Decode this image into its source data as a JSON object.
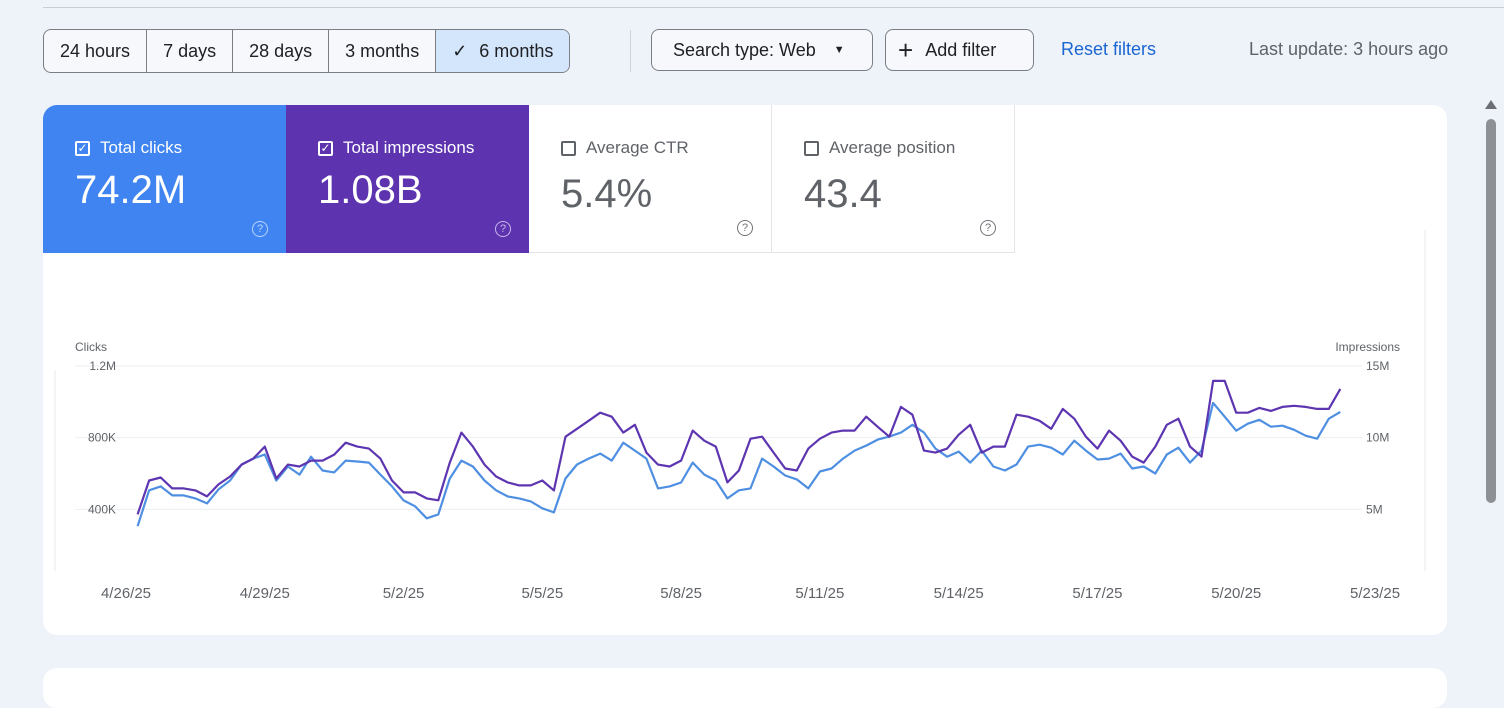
{
  "toolbar": {
    "ranges": [
      {
        "label": "24 hours",
        "selected": false
      },
      {
        "label": "7 days",
        "selected": false
      },
      {
        "label": "28 days",
        "selected": false
      },
      {
        "label": "3 months",
        "selected": false
      },
      {
        "label": "6 months",
        "selected": true
      }
    ],
    "search_type": "Search type: Web",
    "add_filter": "Add filter",
    "reset_filters": "Reset filters",
    "last_update": "Last update: 3 hours ago"
  },
  "metrics": [
    {
      "label": "Total clicks",
      "value": "74.2M",
      "checked": true,
      "color": "#3f84f1"
    },
    {
      "label": "Total impressions",
      "value": "1.08B",
      "checked": true,
      "color": "#5d33b0"
    },
    {
      "label": "Average CTR",
      "value": "5.4%",
      "checked": false
    },
    {
      "label": "Average position",
      "value": "43.4",
      "checked": false
    }
  ],
  "chart_data": {
    "type": "line",
    "left_axis_label": "Clicks",
    "right_axis_label": "Impressions",
    "left_ticks": [
      "400K",
      "800K",
      "1.2M"
    ],
    "left_tick_values": [
      400000,
      800000,
      1200000
    ],
    "right_ticks": [
      "5M",
      "10M",
      "15M"
    ],
    "right_tick_values": [
      5000000,
      10000000,
      15000000
    ],
    "left_ylim": [
      0,
      1200000
    ],
    "right_ylim": [
      0,
      15000000
    ],
    "x_ticks": [
      "4/26/25",
      "4/29/25",
      "5/2/25",
      "5/5/25",
      "5/8/25",
      "5/11/25",
      "5/14/25",
      "5/17/25",
      "5/20/25",
      "5/23/25"
    ],
    "grid": true,
    "x": [
      "4/26 06:00",
      "4/26 12:00",
      "4/26 18:00",
      "4/27 00:00",
      "4/27 06:00",
      "4/27 12:00",
      "4/27 18:00",
      "4/28 00:00",
      "4/28 06:00",
      "4/28 12:00",
      "4/28 18:00",
      "4/29 00:00",
      "4/29 06:00",
      "4/29 12:00",
      "4/29 18:00",
      "4/30 00:00",
      "4/30 06:00",
      "4/30 12:00",
      "4/30 18:00",
      "5/1 00:00",
      "5/1 06:00",
      "5/1 12:00",
      "5/1 18:00",
      "5/2 00:00",
      "5/2 06:00",
      "5/2 12:00",
      "5/2 18:00",
      "5/3 00:00",
      "5/3 06:00",
      "5/3 12:00",
      "5/3 18:00",
      "5/4 00:00",
      "5/4 06:00",
      "5/4 12:00",
      "5/4 18:00",
      "5/5 00:00",
      "5/5 06:00",
      "5/5 12:00",
      "5/5 18:00",
      "5/6 00:00",
      "5/6 06:00",
      "5/6 12:00",
      "5/6 18:00",
      "5/7 00:00",
      "5/7 06:00",
      "5/7 12:00",
      "5/7 18:00",
      "5/8 00:00",
      "5/8 06:00",
      "5/8 12:00",
      "5/8 18:00",
      "5/9 00:00",
      "5/9 06:00",
      "5/9 12:00",
      "5/9 18:00",
      "5/10 00:00",
      "5/10 06:00",
      "5/10 12:00",
      "5/10 18:00",
      "5/11 00:00",
      "5/11 06:00",
      "5/11 12:00",
      "5/11 18:00",
      "5/12 00:00",
      "5/12 06:00",
      "5/12 12:00",
      "5/12 18:00",
      "5/13 00:00",
      "5/13 06:00",
      "5/13 12:00",
      "5/13 18:00",
      "5/14 00:00",
      "5/14 06:00",
      "5/14 12:00",
      "5/14 18:00",
      "5/15 00:00",
      "5/15 06:00",
      "5/15 12:00",
      "5/15 18:00",
      "5/16 00:00",
      "5/16 06:00",
      "5/16 12:00",
      "5/16 18:00",
      "5/17 00:00",
      "5/17 06:00",
      "5/17 12:00",
      "5/17 18:00",
      "5/18 00:00",
      "5/18 06:00",
      "5/18 12:00",
      "5/18 18:00",
      "5/19 00:00",
      "5/19 06:00",
      "5/19 12:00",
      "5/19 18:00",
      "5/20 00:00",
      "5/20 06:00",
      "5/20 12:00",
      "5/20 18:00",
      "5/21 00:00",
      "5/21 06:00",
      "5/21 12:00",
      "5/21 18:00",
      "5/22 00:00",
      "5/22 06:00"
    ],
    "series": [
      {
        "name": "Clicks",
        "axis": "left",
        "color": "#4f8fe2",
        "values": [
          306000,
          506000,
          528000,
          478000,
          478000,
          461000,
          433000,
          511000,
          561000,
          650000,
          683000,
          706000,
          561000,
          639000,
          594000,
          694000,
          617000,
          606000,
          672000,
          667000,
          661000,
          594000,
          528000,
          450000,
          417000,
          350000,
          372000,
          572000,
          672000,
          639000,
          561000,
          506000,
          472000,
          461000,
          444000,
          406000,
          383000,
          572000,
          650000,
          683000,
          711000,
          672000,
          772000,
          728000,
          683000,
          517000,
          528000,
          550000,
          661000,
          594000,
          561000,
          461000,
          506000,
          517000,
          683000,
          639000,
          589000,
          567000,
          517000,
          611000,
          628000,
          683000,
          728000,
          756000,
          789000,
          806000,
          828000,
          872000,
          828000,
          739000,
          694000,
          722000,
          661000,
          728000,
          639000,
          617000,
          650000,
          750000,
          761000,
          744000,
          706000,
          783000,
          728000,
          678000,
          683000,
          711000,
          628000,
          639000,
          600000,
          706000,
          744000,
          661000,
          728000,
          994000,
          917000,
          839000,
          878000,
          900000,
          861000,
          867000,
          844000,
          811000,
          794000,
          906000,
          944000
        ]
      },
      {
        "name": "Impressions",
        "axis": "right",
        "color": "#5e35b1",
        "values": [
          4650000,
          7010000,
          7220000,
          6460000,
          6460000,
          6320000,
          5900000,
          6740000,
          7290000,
          8120000,
          8540000,
          9380000,
          7150000,
          8120000,
          7990000,
          8400000,
          8400000,
          8820000,
          9650000,
          9380000,
          9240000,
          8540000,
          7010000,
          6180000,
          6180000,
          5760000,
          5630000,
          8260000,
          10350000,
          9380000,
          8120000,
          7290000,
          6880000,
          6670000,
          6670000,
          7010000,
          6320000,
          10070000,
          10620000,
          11180000,
          11740000,
          11460000,
          10350000,
          10900000,
          8960000,
          8120000,
          7990000,
          8400000,
          10490000,
          9790000,
          9380000,
          6880000,
          7710000,
          9930000,
          10070000,
          8960000,
          7850000,
          7710000,
          9240000,
          9930000,
          10350000,
          10490000,
          10490000,
          11460000,
          10760000,
          10070000,
          12150000,
          11600000,
          9100000,
          8960000,
          9240000,
          10210000,
          10900000,
          8960000,
          9380000,
          9380000,
          11600000,
          11460000,
          11180000,
          10620000,
          12010000,
          11320000,
          10070000,
          9240000,
          10490000,
          9790000,
          8680000,
          8260000,
          9380000,
          10900000,
          11320000,
          9380000,
          8680000,
          13960000,
          13960000,
          11740000,
          11740000,
          12080000,
          11870000,
          12150000,
          12220000,
          12150000,
          12010000,
          12010000,
          13400000
        ]
      }
    ]
  }
}
